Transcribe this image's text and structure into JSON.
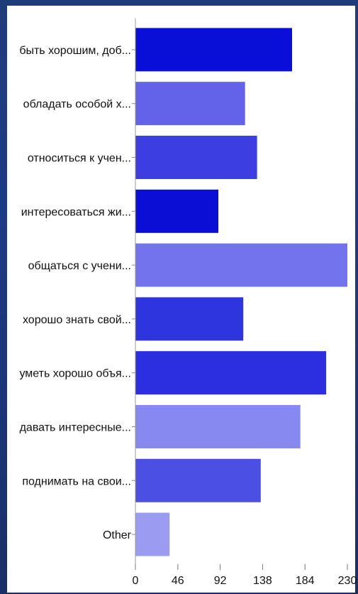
{
  "chart_data": {
    "type": "bar",
    "orientation": "horizontal",
    "categories": [
      "быть хорошим, доб...",
      "обладать особой х...",
      "относиться к учен...",
      "интересоваться жи...",
      "общаться с учени...",
      "хорошо знать свой...",
      "уметь хорошо объя...",
      "давать интересные...",
      "поднимать на свои...",
      "Other"
    ],
    "values": [
      170,
      119,
      132,
      90,
      230,
      117,
      207,
      179,
      136,
      37
    ],
    "bar_colors": [
      "#0a0fd8",
      "#6363ea",
      "#3c3ee2",
      "#0b0fd6",
      "#7373ee",
      "#2f35de",
      "#2c2fe0",
      "#8788f0",
      "#4b4fe4",
      "#9b9bf2"
    ],
    "x_ticks": [
      "0",
      "46",
      "92",
      "138",
      "184",
      "230"
    ],
    "xlim": [
      0,
      230
    ],
    "grid": false,
    "title": "",
    "xlabel": "",
    "ylabel": ""
  },
  "theme": {
    "frame": "#1d3a80",
    "panel": "#ffffff",
    "axis": "#666666"
  }
}
